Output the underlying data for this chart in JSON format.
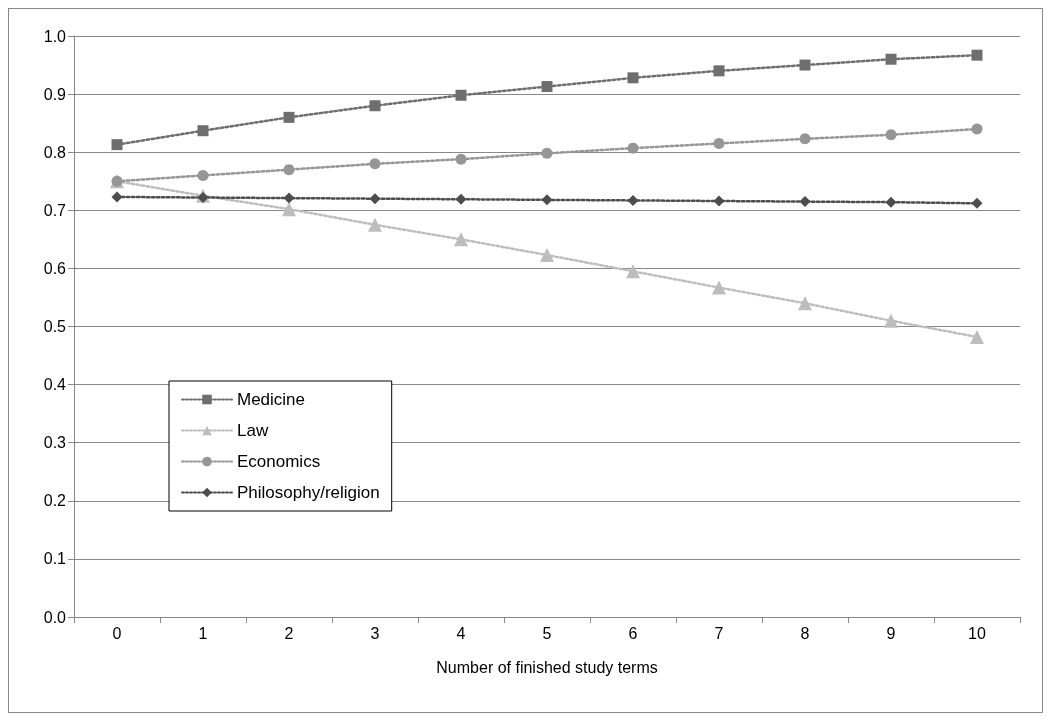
{
  "chart_data": {
    "type": "line",
    "xlabel": "Number of finished study terms",
    "categories": [
      "0",
      "1",
      "2",
      "3",
      "4",
      "5",
      "6",
      "7",
      "8",
      "9",
      "10"
    ],
    "series": [
      {
        "name": "Medicine",
        "color": "#6e6e6e",
        "marker": "square",
        "values": [
          0.813,
          0.837,
          0.86,
          0.88,
          0.898,
          0.913,
          0.928,
          0.94,
          0.95,
          0.96,
          0.967
        ]
      },
      {
        "name": "Law",
        "color": "#bdbdbd",
        "marker": "triangle",
        "values": [
          0.75,
          0.725,
          0.702,
          0.675,
          0.65,
          0.623,
          0.595,
          0.567,
          0.54,
          0.51,
          0.482
        ]
      },
      {
        "name": "Economics",
        "color": "#969696",
        "marker": "circle",
        "values": [
          0.75,
          0.76,
          0.77,
          0.78,
          0.788,
          0.798,
          0.807,
          0.815,
          0.823,
          0.83,
          0.84
        ]
      },
      {
        "name": "Philosophy/religion",
        "color": "#4d4d4d",
        "marker": "diamond",
        "values": [
          0.723,
          0.722,
          0.721,
          0.72,
          0.719,
          0.718,
          0.717,
          0.716,
          0.715,
          0.714,
          0.712
        ]
      }
    ],
    "ylim": [
      0,
      1
    ],
    "yticks": [
      {
        "value": 0,
        "label": "0.0"
      },
      {
        "value": 0.1,
        "label": "0.1"
      },
      {
        "value": 0.2,
        "label": "0.2"
      },
      {
        "value": 0.3,
        "label": "0.3"
      },
      {
        "value": 0.4,
        "label": "0.4"
      },
      {
        "value": 0.5,
        "label": "0.5"
      },
      {
        "value": 0.6,
        "label": "0.6"
      },
      {
        "value": 0.7,
        "label": "0.7"
      },
      {
        "value": 0.8,
        "label": "0.8"
      },
      {
        "value": 0.9,
        "label": "0.9"
      },
      {
        "value": 1,
        "label": "1.0"
      }
    ],
    "grid": "y",
    "legend": "left",
    "line_style": "dotted"
  }
}
